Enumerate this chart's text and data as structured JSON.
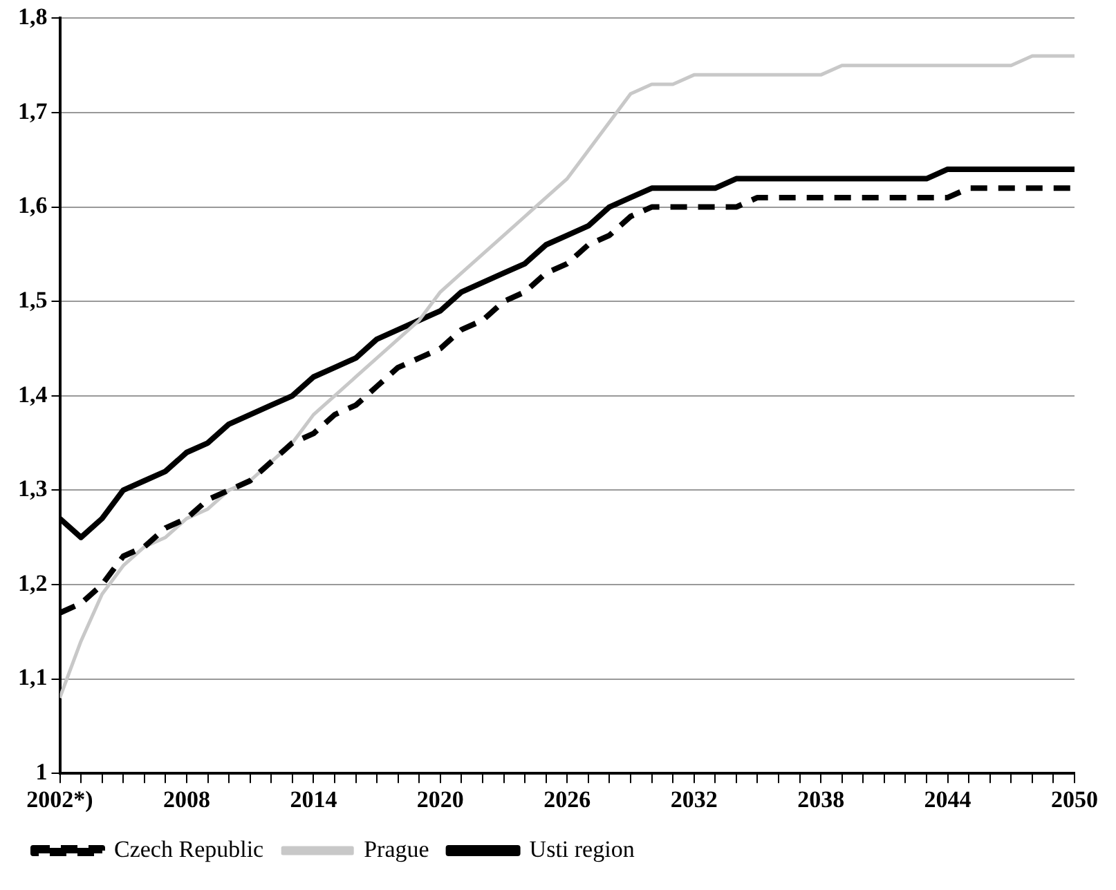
{
  "chart_data": {
    "type": "line",
    "x": [
      2002,
      2003,
      2004,
      2005,
      2006,
      2007,
      2008,
      2009,
      2010,
      2011,
      2012,
      2013,
      2014,
      2015,
      2016,
      2017,
      2018,
      2019,
      2020,
      2021,
      2022,
      2023,
      2024,
      2025,
      2026,
      2027,
      2028,
      2029,
      2030,
      2031,
      2032,
      2033,
      2034,
      2035,
      2036,
      2037,
      2038,
      2039,
      2040,
      2041,
      2042,
      2043,
      2044,
      2045,
      2046,
      2047,
      2048,
      2049,
      2050
    ],
    "series": [
      {
        "name": "Czech Republic",
        "color": "#000000",
        "line_style": "dashed",
        "values": [
          1.17,
          1.18,
          1.2,
          1.23,
          1.24,
          1.26,
          1.27,
          1.29,
          1.3,
          1.31,
          1.33,
          1.35,
          1.36,
          1.38,
          1.39,
          1.41,
          1.43,
          1.44,
          1.45,
          1.47,
          1.48,
          1.5,
          1.51,
          1.53,
          1.54,
          1.56,
          1.57,
          1.59,
          1.6,
          1.6,
          1.6,
          1.6,
          1.6,
          1.61,
          1.61,
          1.61,
          1.61,
          1.61,
          1.61,
          1.61,
          1.61,
          1.61,
          1.61,
          1.62,
          1.62,
          1.62,
          1.62,
          1.62,
          1.62
        ]
      },
      {
        "name": "Prague",
        "color": "#c8c8c8",
        "line_style": "solid",
        "values": [
          1.08,
          1.14,
          1.19,
          1.22,
          1.24,
          1.25,
          1.27,
          1.28,
          1.3,
          1.31,
          1.33,
          1.35,
          1.38,
          1.4,
          1.42,
          1.44,
          1.46,
          1.48,
          1.51,
          1.53,
          1.55,
          1.57,
          1.59,
          1.61,
          1.63,
          1.66,
          1.69,
          1.72,
          1.73,
          1.73,
          1.74,
          1.74,
          1.74,
          1.74,
          1.74,
          1.74,
          1.74,
          1.75,
          1.75,
          1.75,
          1.75,
          1.75,
          1.75,
          1.75,
          1.75,
          1.75,
          1.76,
          1.76,
          1.76
        ]
      },
      {
        "name": "Usti region",
        "color": "#000000",
        "line_style": "solid",
        "values": [
          1.27,
          1.25,
          1.27,
          1.3,
          1.31,
          1.32,
          1.34,
          1.35,
          1.37,
          1.38,
          1.39,
          1.4,
          1.42,
          1.43,
          1.44,
          1.46,
          1.47,
          1.48,
          1.49,
          1.51,
          1.52,
          1.53,
          1.54,
          1.56,
          1.57,
          1.58,
          1.6,
          1.61,
          1.62,
          1.62,
          1.62,
          1.62,
          1.63,
          1.63,
          1.63,
          1.63,
          1.63,
          1.63,
          1.63,
          1.63,
          1.63,
          1.63,
          1.64,
          1.64,
          1.64,
          1.64,
          1.64,
          1.64,
          1.64
        ]
      }
    ],
    "xlim": [
      2002,
      2050
    ],
    "xticks": [
      {
        "value": 2002,
        "label": "2002*)"
      },
      {
        "value": 2003,
        "label": null
      },
      {
        "value": 2004,
        "label": null
      },
      {
        "value": 2005,
        "label": null
      },
      {
        "value": 2006,
        "label": null
      },
      {
        "value": 2007,
        "label": null
      },
      2008,
      {
        "value": 2009,
        "label": null
      },
      {
        "value": 2010,
        "label": null
      },
      {
        "value": 2011,
        "label": null
      },
      {
        "value": 2012,
        "label": null
      },
      {
        "value": 2013,
        "label": null
      },
      2014,
      {
        "value": 2015,
        "label": null
      },
      {
        "value": 2016,
        "label": null
      },
      {
        "value": 2017,
        "label": null
      },
      {
        "value": 2018,
        "label": null
      },
      {
        "value": 2019,
        "label": null
      },
      2020,
      {
        "value": 2021,
        "label": null
      },
      {
        "value": 2022,
        "label": null
      },
      {
        "value": 2023,
        "label": null
      },
      {
        "value": 2024,
        "label": null
      },
      {
        "value": 2025,
        "label": null
      },
      2026,
      {
        "value": 2027,
        "label": null
      },
      {
        "value": 2028,
        "label": null
      },
      {
        "value": 2029,
        "label": null
      },
      {
        "value": 2030,
        "label": null
      },
      {
        "value": 2031,
        "label": null
      },
      2032,
      {
        "value": 2033,
        "label": null
      },
      {
        "value": 2034,
        "label": null
      },
      {
        "value": 2035,
        "label": null
      },
      {
        "value": 2036,
        "label": null
      },
      {
        "value": 2037,
        "label": null
      },
      2038,
      {
        "value": 2039,
        "label": null
      },
      {
        "value": 2040,
        "label": null
      },
      {
        "value": 2041,
        "label": null
      },
      {
        "value": 2042,
        "label": null
      },
      {
        "value": 2043,
        "label": null
      },
      2044,
      {
        "value": 2045,
        "label": null
      },
      {
        "value": 2046,
        "label": null
      },
      {
        "value": 2047,
        "label": null
      },
      {
        "value": 2048,
        "label": null
      },
      {
        "value": 2049,
        "label": null
      },
      2050
    ],
    "ylim": [
      1,
      1.8
    ],
    "yticks": [
      1,
      {
        "value": 1.1,
        "label": "1,1"
      },
      {
        "value": 1.2,
        "label": "1,2"
      },
      {
        "value": 1.3,
        "label": "1,3"
      },
      {
        "value": 1.4,
        "label": "1,4"
      },
      {
        "value": 1.5,
        "label": "1,5"
      },
      {
        "value": 1.6,
        "label": "1,6"
      },
      {
        "value": 1.7,
        "label": "1,7"
      },
      {
        "value": 1.8,
        "label": "1,8"
      }
    ],
    "grid": "y",
    "legend": "bottom left",
    "marker": "none"
  }
}
